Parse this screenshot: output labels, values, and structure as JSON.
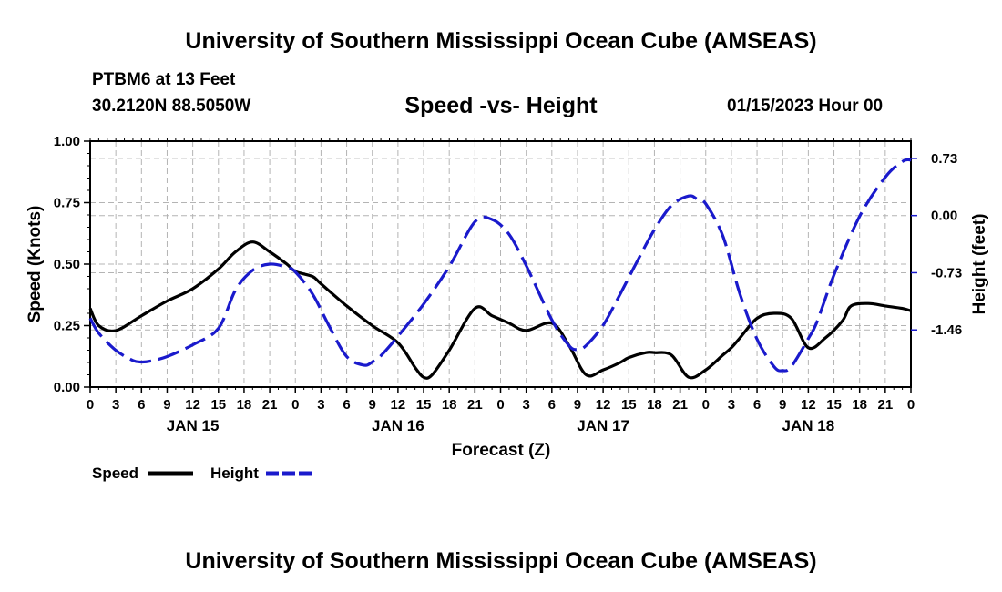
{
  "header": {
    "title": "University of Southern Mississippi Ocean Cube (AMSEAS)",
    "footer_title": "University of Southern Mississippi Ocean Cube (AMSEAS)",
    "station": "PTBM6 at 13 Feet",
    "coords": "30.2120N  88.5050W",
    "datetime": "01/15/2023 Hour 00"
  },
  "chart_data": {
    "type": "line",
    "title": "Speed -vs- Height",
    "xlabel": "Forecast (Z)",
    "ylabel": "Speed (Knots)",
    "y2label": "Height (feet)",
    "xlim": [
      0,
      96
    ],
    "ylim": [
      0,
      1
    ],
    "y2lim": [
      -2.19,
      0.95
    ],
    "y_ticks": [
      0,
      0.25,
      0.5,
      0.75,
      1.0
    ],
    "y_tick_labels": [
      "0.00",
      "0.25",
      "0.50",
      "0.75",
      "1.00"
    ],
    "y2_ticks": [
      0.73,
      0.0,
      -0.73,
      -1.46
    ],
    "y2_tick_labels": [
      "0.73",
      "0.00",
      "-0.73",
      "-1.46"
    ],
    "x_ticks": [
      0,
      3,
      6,
      9,
      12,
      15,
      18,
      21,
      24,
      27,
      30,
      33,
      36,
      39,
      42,
      45,
      48,
      51,
      54,
      57,
      60,
      63,
      66,
      69,
      72,
      75,
      78,
      81,
      84,
      87,
      90,
      93,
      96
    ],
    "x_tick_labels": [
      "0",
      "3",
      "6",
      "9",
      "12",
      "15",
      "18",
      "21",
      "0",
      "3",
      "6",
      "9",
      "12",
      "15",
      "18",
      "21",
      "0",
      "3",
      "6",
      "9",
      "12",
      "15",
      "18",
      "21",
      "0",
      "3",
      "6",
      "9",
      "12",
      "15",
      "18",
      "21",
      "0"
    ],
    "day_labels": [
      {
        "x": 12,
        "label": "JAN 15"
      },
      {
        "x": 36,
        "label": "JAN 16"
      },
      {
        "x": 60,
        "label": "JAN 17"
      },
      {
        "x": 84,
        "label": "JAN 18"
      }
    ],
    "grid": true,
    "legend_position": "bottom-left",
    "series": [
      {
        "name": "Speed",
        "axis": "left",
        "color": "#000000",
        "dash": "solid",
        "x": [
          0,
          1,
          3,
          6,
          9,
          12,
          15,
          17,
          19,
          21,
          23,
          24,
          26,
          27,
          30,
          33,
          36,
          38,
          39,
          40,
          42,
          45,
          47,
          49,
          51,
          54,
          56,
          58,
          60,
          62,
          63,
          65,
          66,
          68,
          70,
          72,
          74,
          75,
          76,
          78,
          80,
          82,
          84,
          86,
          88,
          89,
          91,
          93,
          95,
          96
        ],
        "y": [
          0.32,
          0.25,
          0.23,
          0.29,
          0.35,
          0.4,
          0.48,
          0.55,
          0.59,
          0.55,
          0.5,
          0.47,
          0.45,
          0.42,
          0.33,
          0.25,
          0.18,
          0.08,
          0.04,
          0.05,
          0.15,
          0.32,
          0.29,
          0.26,
          0.23,
          0.26,
          0.17,
          0.05,
          0.07,
          0.1,
          0.12,
          0.14,
          0.14,
          0.13,
          0.04,
          0.07,
          0.13,
          0.16,
          0.2,
          0.28,
          0.3,
          0.28,
          0.16,
          0.2,
          0.27,
          0.33,
          0.34,
          0.33,
          0.32,
          0.31
        ]
      },
      {
        "name": "Height",
        "axis": "right",
        "color": "#1a1acc",
        "dash": "dashed",
        "x": [
          0,
          1,
          3,
          5,
          6,
          7,
          9,
          12,
          15,
          17,
          19,
          21,
          23,
          24,
          26,
          28,
          30,
          32,
          33,
          34,
          36,
          39,
          42,
          45,
          47,
          49,
          51,
          54,
          56,
          57,
          58,
          60,
          62,
          64,
          66,
          68,
          70,
          71,
          72,
          74,
          76,
          78,
          80,
          81,
          82,
          84,
          85,
          87,
          90,
          93,
          95,
          96
        ],
        "y": [
          -1.31,
          -1.5,
          -1.72,
          -1.85,
          -1.87,
          -1.86,
          -1.8,
          -1.65,
          -1.44,
          -0.95,
          -0.7,
          -0.62,
          -0.66,
          -0.72,
          -1.0,
          -1.42,
          -1.8,
          -1.91,
          -1.87,
          -1.79,
          -1.54,
          -1.13,
          -0.65,
          -0.08,
          -0.05,
          -0.24,
          -0.64,
          -1.33,
          -1.66,
          -1.71,
          -1.66,
          -1.4,
          -1.0,
          -0.58,
          -0.18,
          0.13,
          0.25,
          0.21,
          0.15,
          -0.26,
          -1.0,
          -1.58,
          -1.93,
          -1.98,
          -1.93,
          -1.57,
          -1.36,
          -0.76,
          -0.01,
          0.49,
          0.69,
          0.71
        ]
      }
    ]
  }
}
